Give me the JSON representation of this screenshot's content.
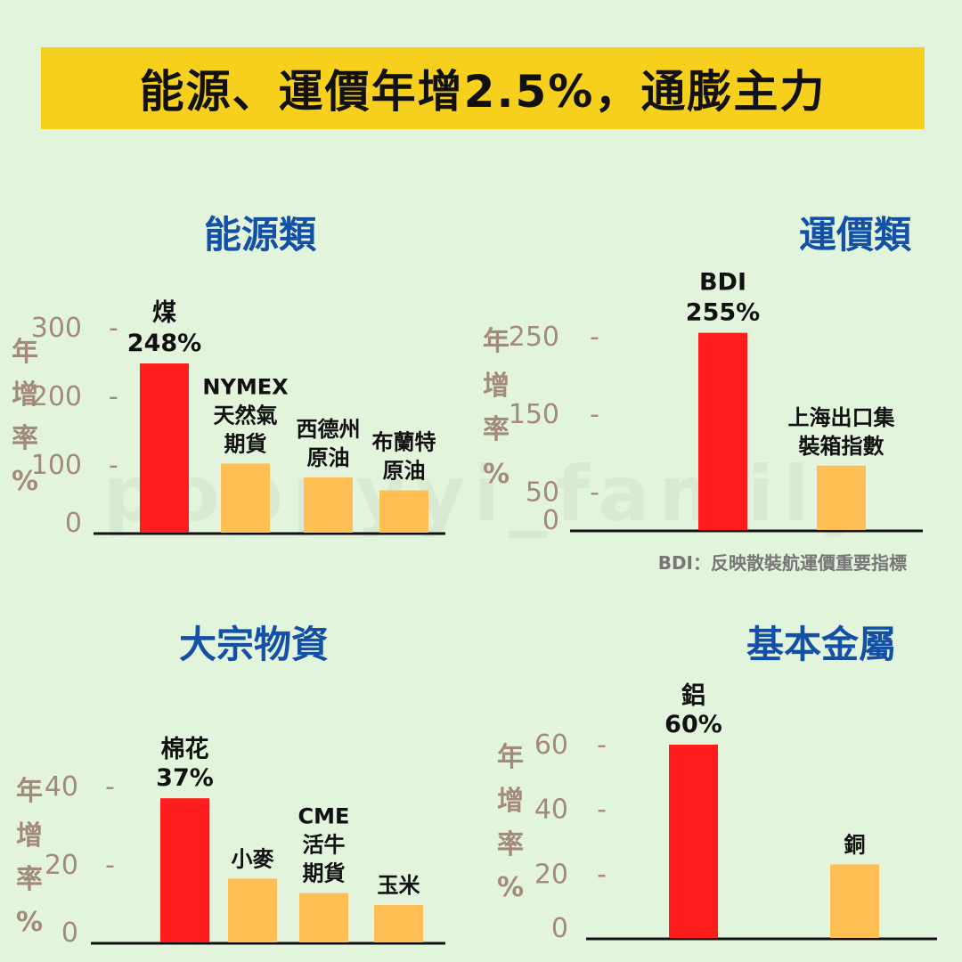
{
  "title": "能源、運價年增2.5%，通膨主力",
  "watermark": "poppyyi_family",
  "colors": {
    "highlight": "#ff1c1c",
    "normal": "#ffbf55",
    "title_bg": "#f7cf1d",
    "section_title": "#1451a6",
    "axis_text": "#a38a7a"
  },
  "chart_data": [
    {
      "type": "bar",
      "title": "能源類",
      "ylabel": "年增率%",
      "yticks": [
        "300",
        "200",
        "100",
        "0"
      ],
      "ylim": [
        0,
        300
      ],
      "categories": [
        [
          "煤",
          "248%"
        ],
        [
          "NYMEX",
          "天然氣",
          "期貨"
        ],
        [
          "西德州",
          "原油"
        ],
        [
          "布蘭特",
          "原油"
        ]
      ],
      "values": [
        248,
        102,
        82,
        63
      ]
    },
    {
      "type": "bar",
      "title": "運價類",
      "ylabel": "年增率%",
      "yticks": [
        "250",
        "150",
        "50",
        "0"
      ],
      "ylim": [
        0,
        250
      ],
      "categories": [
        [
          "BDI",
          "255%"
        ],
        [
          "上海出口集",
          "裝箱指數"
        ]
      ],
      "values": [
        255,
        84
      ],
      "note": "BDI：反映散裝航運價重要指標"
    },
    {
      "type": "bar",
      "title": "大宗物資",
      "ylabel": "年增率%",
      "yticks": [
        "40",
        "20",
        "0"
      ],
      "ylim": [
        0,
        40
      ],
      "categories": [
        [
          "棉花",
          "37%"
        ],
        [
          "小麥"
        ],
        [
          "CME",
          "活牛",
          "期貨"
        ],
        [
          "玉米"
        ]
      ],
      "values": [
        37,
        16.5,
        12.8,
        9.8
      ]
    },
    {
      "type": "bar",
      "title": "基本金屬",
      "ylabel": "年增率%",
      "yticks": [
        "60",
        "40",
        "20",
        "0"
      ],
      "ylim": [
        0,
        60
      ],
      "categories": [
        [
          "鋁",
          "60%"
        ],
        [
          "銅"
        ]
      ],
      "values": [
        60,
        23
      ]
    }
  ]
}
